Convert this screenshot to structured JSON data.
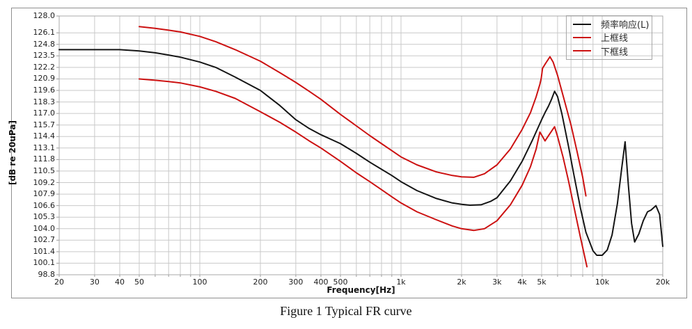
{
  "figure_caption": "Figure 1 Typical FR curve",
  "colors": {
    "response_line": "#151515",
    "limit_line": "#cc1111",
    "gridline": "#c9c9c9",
    "plot_border": "#a8a8a8",
    "frame_border": "#8f8f8f"
  },
  "chart_data": {
    "type": "line",
    "title": "",
    "xlabel": "Frequency[Hz]",
    "ylabel": "[dB re 20uPa]",
    "x_scale": "log",
    "xlim": [
      20,
      20000
    ],
    "ylim": [
      98.8,
      128.0
    ],
    "grid": true,
    "legend_position": "top-right",
    "y_ticks": [
      128.0,
      126.1,
      124.8,
      123.5,
      122.2,
      120.9,
      119.6,
      118.3,
      117.0,
      115.7,
      114.4,
      113.1,
      111.8,
      110.5,
      109.2,
      107.9,
      106.6,
      105.3,
      104.0,
      102.7,
      101.4,
      100.1,
      98.8
    ],
    "x_ticks": [
      {
        "label": "20",
        "value": 20
      },
      {
        "label": "30",
        "value": 30
      },
      {
        "label": "40",
        "value": 40
      },
      {
        "label": "50",
        "value": 50
      },
      {
        "label": "100",
        "value": 100
      },
      {
        "label": "200",
        "value": 200
      },
      {
        "label": "300",
        "value": 300
      },
      {
        "label": "400",
        "value": 400
      },
      {
        "label": "500",
        "value": 500
      },
      {
        "label": "1k",
        "value": 1000
      },
      {
        "label": "2k",
        "value": 2000
      },
      {
        "label": "3k",
        "value": 3000
      },
      {
        "label": "4k",
        "value": 4000
      },
      {
        "label": "5k",
        "value": 5000
      },
      {
        "label": "10k",
        "value": 10000
      },
      {
        "label": "20k",
        "value": 20000
      }
    ],
    "x_gridlines": [
      20,
      30,
      40,
      50,
      60,
      70,
      80,
      90,
      100,
      200,
      300,
      400,
      500,
      600,
      700,
      800,
      900,
      1000,
      2000,
      3000,
      4000,
      5000,
      6000,
      7000,
      8000,
      9000,
      10000,
      20000
    ],
    "series": [
      {
        "name": "频率响应(L)",
        "color": "#151515",
        "points": [
          [
            20,
            124.2
          ],
          [
            30,
            124.2
          ],
          [
            40,
            124.2
          ],
          [
            50,
            124.05
          ],
          [
            60,
            123.85
          ],
          [
            70,
            123.6
          ],
          [
            80,
            123.35
          ],
          [
            100,
            122.8
          ],
          [
            120,
            122.2
          ],
          [
            150,
            121.1
          ],
          [
            200,
            119.6
          ],
          [
            250,
            117.9
          ],
          [
            300,
            116.3
          ],
          [
            350,
            115.3
          ],
          [
            400,
            114.6
          ],
          [
            500,
            113.6
          ],
          [
            600,
            112.5
          ],
          [
            700,
            111.5
          ],
          [
            800,
            110.7
          ],
          [
            900,
            110.0
          ],
          [
            1000,
            109.3
          ],
          [
            1200,
            108.3
          ],
          [
            1500,
            107.4
          ],
          [
            1800,
            106.9
          ],
          [
            2000,
            106.75
          ],
          [
            2200,
            106.65
          ],
          [
            2500,
            106.7
          ],
          [
            2800,
            107.1
          ],
          [
            3000,
            107.5
          ],
          [
            3500,
            109.4
          ],
          [
            4000,
            111.6
          ],
          [
            4500,
            114.0
          ],
          [
            5000,
            116.3
          ],
          [
            5200,
            117.1
          ],
          [
            5400,
            117.8
          ],
          [
            5600,
            118.6
          ],
          [
            5800,
            119.5
          ],
          [
            6000,
            118.9
          ],
          [
            6300,
            117.0
          ],
          [
            6800,
            113.3
          ],
          [
            7200,
            110.3
          ],
          [
            7800,
            106.3
          ],
          [
            8300,
            103.6
          ],
          [
            9000,
            101.5
          ],
          [
            9400,
            101.0
          ],
          [
            10000,
            101.0
          ],
          [
            10600,
            101.6
          ],
          [
            11200,
            103.3
          ],
          [
            11900,
            106.8
          ],
          [
            12500,
            110.8
          ],
          [
            13000,
            113.8
          ],
          [
            13500,
            108.8
          ],
          [
            14000,
            104.6
          ],
          [
            14500,
            102.5
          ],
          [
            15200,
            103.4
          ],
          [
            16000,
            104.9
          ],
          [
            16800,
            105.9
          ],
          [
            17500,
            106.1
          ],
          [
            18500,
            106.6
          ],
          [
            19300,
            105.6
          ],
          [
            20000,
            102.0
          ]
        ]
      },
      {
        "name": "上框线",
        "color": "#cc1111",
        "points": [
          [
            50,
            126.8
          ],
          [
            60,
            126.6
          ],
          [
            70,
            126.4
          ],
          [
            80,
            126.2
          ],
          [
            100,
            125.7
          ],
          [
            120,
            125.1
          ],
          [
            150,
            124.2
          ],
          [
            200,
            122.9
          ],
          [
            250,
            121.6
          ],
          [
            300,
            120.5
          ],
          [
            350,
            119.5
          ],
          [
            400,
            118.6
          ],
          [
            500,
            116.9
          ],
          [
            600,
            115.6
          ],
          [
            700,
            114.5
          ],
          [
            800,
            113.6
          ],
          [
            900,
            112.8
          ],
          [
            1000,
            112.1
          ],
          [
            1200,
            111.2
          ],
          [
            1500,
            110.4
          ],
          [
            1800,
            110.0
          ],
          [
            2000,
            109.85
          ],
          [
            2300,
            109.8
          ],
          [
            2600,
            110.2
          ],
          [
            3000,
            111.2
          ],
          [
            3500,
            113.0
          ],
          [
            4000,
            115.2
          ],
          [
            4400,
            117.1
          ],
          [
            4700,
            118.9
          ],
          [
            4900,
            120.3
          ],
          [
            4980,
            121.0
          ],
          [
            5050,
            122.1
          ],
          [
            5250,
            122.7
          ],
          [
            5500,
            123.4
          ],
          [
            5700,
            122.8
          ],
          [
            6000,
            121.3
          ],
          [
            6500,
            118.4
          ],
          [
            7000,
            115.7
          ],
          [
            7500,
            112.7
          ],
          [
            8000,
            109.8
          ],
          [
            8300,
            107.7
          ]
        ]
      },
      {
        "name": "下框线",
        "color": "#cc1111",
        "points": [
          [
            50,
            120.9
          ],
          [
            60,
            120.75
          ],
          [
            70,
            120.6
          ],
          [
            80,
            120.45
          ],
          [
            100,
            120.0
          ],
          [
            120,
            119.5
          ],
          [
            150,
            118.7
          ],
          [
            200,
            117.2
          ],
          [
            250,
            116.0
          ],
          [
            300,
            114.9
          ],
          [
            350,
            113.9
          ],
          [
            400,
            113.1
          ],
          [
            500,
            111.6
          ],
          [
            600,
            110.3
          ],
          [
            700,
            109.3
          ],
          [
            800,
            108.4
          ],
          [
            900,
            107.6
          ],
          [
            1000,
            106.9
          ],
          [
            1200,
            105.9
          ],
          [
            1500,
            105.0
          ],
          [
            1800,
            104.3
          ],
          [
            2000,
            104.0
          ],
          [
            2300,
            103.8
          ],
          [
            2600,
            104.0
          ],
          [
            3000,
            104.9
          ],
          [
            3500,
            106.7
          ],
          [
            4000,
            108.9
          ],
          [
            4400,
            111.0
          ],
          [
            4700,
            113.0
          ],
          [
            4900,
            114.9
          ],
          [
            5050,
            114.4
          ],
          [
            5200,
            113.9
          ],
          [
            5450,
            114.6
          ],
          [
            5800,
            115.5
          ],
          [
            6000,
            114.4
          ],
          [
            6400,
            112.0
          ],
          [
            6800,
            109.4
          ],
          [
            7200,
            106.7
          ],
          [
            7800,
            103.0
          ],
          [
            8400,
            99.7
          ]
        ]
      }
    ]
  }
}
